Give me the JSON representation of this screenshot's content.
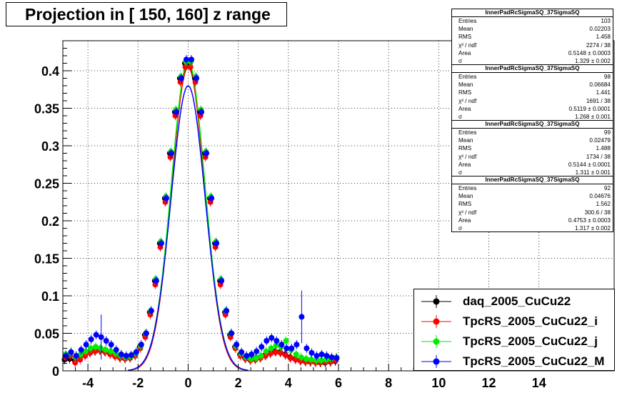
{
  "title": "Projection in [ 150, 160] z range",
  "colors": {
    "daq": "#000000",
    "tpc_i": "#ff0000",
    "tpc_j": "#00ee00",
    "tpc_m": "#0000ff"
  },
  "stats_boxes": [
    {
      "name": "InnerPadRcSigmaSQ_37SigmaSQ",
      "rows": [
        [
          "Entries",
          "103"
        ],
        [
          "Mean",
          "0.02203"
        ],
        [
          "RMS",
          "1.458"
        ],
        [
          "χ² / ndf",
          "2274 / 38"
        ],
        [
          "Area",
          "0.5148 ± 0.0003"
        ],
        [
          "σ",
          "1.329 ± 0.002"
        ]
      ]
    },
    {
      "name": "InnerPadRcSigmaSQ_37SigmaSQ",
      "rows": [
        [
          "Entries",
          "98"
        ],
        [
          "Mean",
          "0.06684"
        ],
        [
          "RMS",
          "1.441"
        ],
        [
          "χ² / ndf",
          "1691 / 38"
        ],
        [
          "Area",
          "0.5119 ± 0.0001"
        ],
        [
          "σ",
          "1.268 ± 0.001"
        ]
      ]
    },
    {
      "name": "InnerPadRcSigmaSQ_37SigmaSQ",
      "rows": [
        [
          "Entries",
          "99"
        ],
        [
          "Mean",
          "0.02479"
        ],
        [
          "RMS",
          "1.488"
        ],
        [
          "χ² / ndf",
          "1734 / 38"
        ],
        [
          "Area",
          "0.5144 ± 0.0001"
        ],
        [
          "σ",
          "1.311 ± 0.001"
        ]
      ]
    },
    {
      "name": "InnerPadRcSigmaSQ_37SigmaSQ",
      "rows": [
        [
          "Entries",
          "92"
        ],
        [
          "Mean",
          "0.04676"
        ],
        [
          "RMS",
          "1.562"
        ],
        [
          "χ² / ndf",
          "300.6 / 38"
        ],
        [
          "Area",
          "0.4753 ± 0.0003"
        ],
        [
          "σ",
          "1.317 ± 0.002"
        ]
      ]
    }
  ],
  "legend": [
    {
      "label": "daq_2005_CuCu22",
      "color": "#000000"
    },
    {
      "label": "TpcRS_2005_CuCu22_i",
      "color": "#ff0000"
    },
    {
      "label": "TpcRS_2005_CuCu22_j",
      "color": "#00ee00"
    },
    {
      "label": "TpcRS_2005_CuCu22_M",
      "color": "#0000ff"
    }
  ],
  "chart_data": {
    "type": "scatter",
    "title": "Projection in [ 150, 160] z range",
    "xlabel": "",
    "ylabel": "",
    "xlim": [
      -5,
      17
    ],
    "ylim": [
      0,
      0.44
    ],
    "grid": true,
    "legend_position": "bottom-right",
    "x_ticks": [
      -4,
      -2,
      0,
      2,
      4,
      6,
      8,
      10,
      12,
      14
    ],
    "y_ticks": [
      0,
      0.05,
      0.1,
      0.15,
      0.2,
      0.25,
      0.3,
      0.35,
      0.4
    ],
    "x_tick_labels": [
      "-4",
      "-2",
      "0",
      "2",
      "4",
      "6",
      "8",
      "10",
      "12",
      "14"
    ],
    "y_tick_labels": [
      "0",
      "0.05",
      "0.1",
      "0.15",
      "0.2",
      "0.25",
      "0.3",
      "0.35",
      "0.4"
    ],
    "x": [
      -4.9,
      -4.7,
      -4.5,
      -4.3,
      -4.1,
      -3.9,
      -3.7,
      -3.5,
      -3.3,
      -3.1,
      -2.9,
      -2.7,
      -2.5,
      -2.3,
      -2.1,
      -1.9,
      -1.7,
      -1.5,
      -1.3,
      -1.1,
      -0.9,
      -0.7,
      -0.5,
      -0.3,
      -0.1,
      0.1,
      0.3,
      0.5,
      0.7,
      0.9,
      1.1,
      1.3,
      1.5,
      1.7,
      1.9,
      2.1,
      2.3,
      2.5,
      2.7,
      2.9,
      3.1,
      3.3,
      3.5,
      3.7,
      3.9,
      4.1,
      4.3,
      4.5,
      4.7,
      4.9,
      5.1,
      5.3,
      5.5,
      5.7,
      5.9
    ],
    "series": [
      {
        "name": "daq_2005_CuCu22",
        "values": [
          0.015,
          0.016,
          0.014,
          0.018,
          0.022,
          0.025,
          0.027,
          0.028,
          0.026,
          0.024,
          0.021,
          0.018,
          0.017,
          0.018,
          0.022,
          0.032,
          0.048,
          0.078,
          0.12,
          0.17,
          0.23,
          0.29,
          0.345,
          0.39,
          0.41,
          0.41,
          0.39,
          0.345,
          0.29,
          0.23,
          0.17,
          0.12,
          0.078,
          0.048,
          0.032,
          0.022,
          0.017,
          0.015,
          0.016,
          0.018,
          0.021,
          0.024,
          0.026,
          0.025,
          0.022,
          0.018,
          0.016,
          0.014,
          0.013,
          0.012,
          0.012,
          0.011,
          0.011,
          0.012,
          0.013
        ]
      },
      {
        "name": "TpcRS_2005_CuCu22_i",
        "values": [
          0.018,
          0.02,
          0.011,
          0.015,
          0.02,
          0.024,
          0.026,
          0.027,
          0.025,
          0.022,
          0.019,
          0.017,
          0.016,
          0.017,
          0.02,
          0.03,
          0.045,
          0.075,
          0.115,
          0.165,
          0.225,
          0.285,
          0.34,
          0.385,
          0.405,
          0.405,
          0.385,
          0.34,
          0.285,
          0.225,
          0.165,
          0.115,
          0.075,
          0.045,
          0.03,
          0.02,
          0.016,
          0.014,
          0.015,
          0.017,
          0.02,
          0.023,
          0.025,
          0.024,
          0.021,
          0.017,
          0.015,
          0.013,
          0.012,
          0.012,
          0.011,
          0.011,
          0.012,
          0.012,
          0.014
        ]
      },
      {
        "name": "TpcRS_2005_CuCu22_j",
        "values": [
          0.022,
          0.024,
          0.018,
          0.022,
          0.026,
          0.03,
          0.032,
          0.03,
          0.028,
          0.026,
          0.023,
          0.02,
          0.018,
          0.019,
          0.023,
          0.033,
          0.05,
          0.08,
          0.122,
          0.172,
          0.232,
          0.292,
          0.348,
          0.392,
          0.412,
          0.412,
          0.392,
          0.348,
          0.292,
          0.232,
          0.172,
          0.122,
          0.08,
          0.05,
          0.033,
          0.023,
          0.018,
          0.016,
          0.017,
          0.02,
          0.026,
          0.03,
          0.034,
          0.032,
          0.04,
          0.028,
          0.022,
          0.018,
          0.016,
          0.015,
          0.014,
          0.014,
          0.015,
          0.016,
          0.018
        ]
      },
      {
        "name": "TpcRS_2005_CuCu22_M",
        "values": [
          0.02,
          0.025,
          0.02,
          0.028,
          0.035,
          0.042,
          0.048,
          0.045,
          0.04,
          0.035,
          0.028,
          0.022,
          0.02,
          0.021,
          0.025,
          0.035,
          0.05,
          0.08,
          0.12,
          0.17,
          0.23,
          0.29,
          0.345,
          0.39,
          0.415,
          0.415,
          0.39,
          0.345,
          0.29,
          0.23,
          0.17,
          0.12,
          0.08,
          0.05,
          0.035,
          0.025,
          0.02,
          0.022,
          0.026,
          0.032,
          0.04,
          0.044,
          0.04,
          0.035,
          0.03,
          0.03,
          0.035,
          0.072,
          0.03,
          0.024,
          0.02,
          0.022,
          0.02,
          0.018,
          0.017
        ]
      }
    ],
    "fits": [
      {
        "name": "TpcRS_2005_CuCu22_M",
        "amplitude": 0.38,
        "sigma": 0.68
      }
    ]
  }
}
